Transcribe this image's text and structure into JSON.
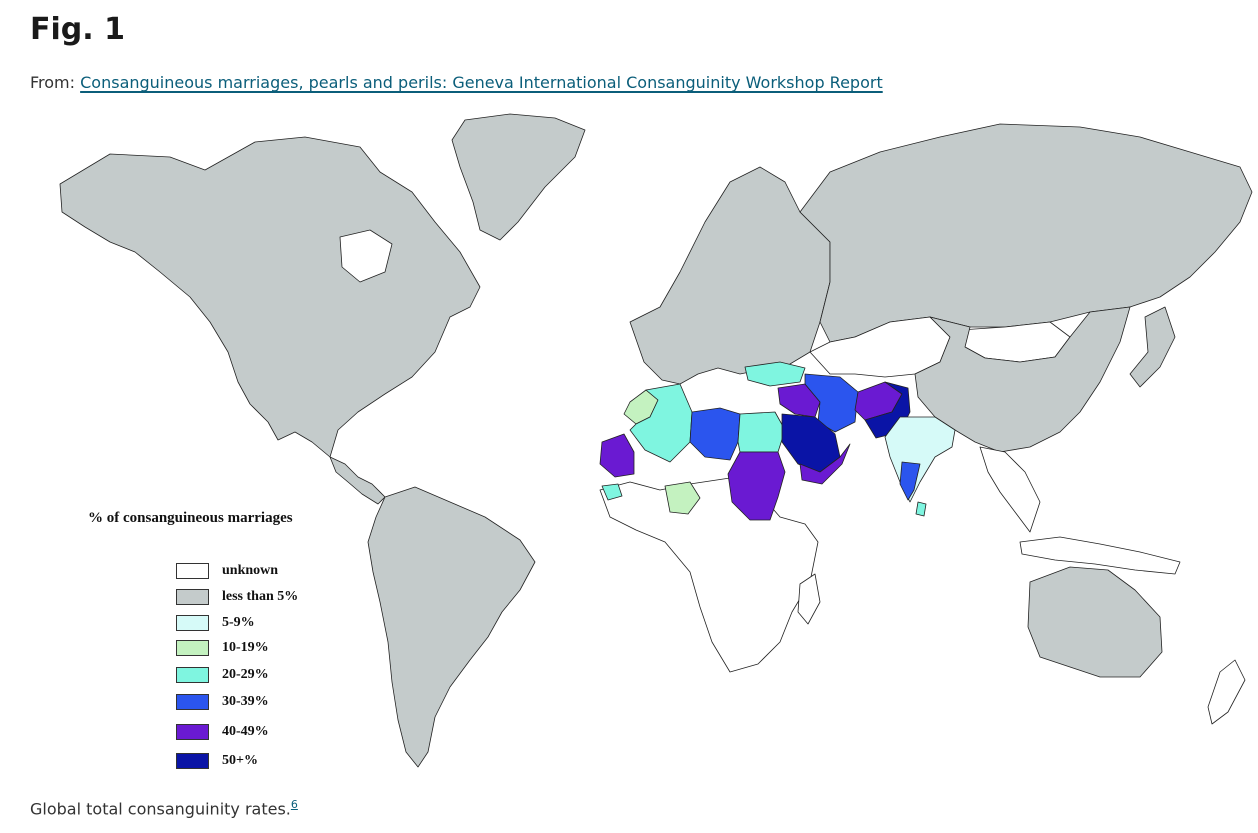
{
  "figure": {
    "title": "Fig. 1",
    "from_prefix": "From: ",
    "from_link_text": "Consanguineous marriages, pearls and perils: Geneva International Consanguinity Workshop Report",
    "caption_text": "Global total consanguinity rates.",
    "caption_ref": "6"
  },
  "legend": {
    "title": "% of consanguineous marriages",
    "items": [
      {
        "label": "unknown",
        "color": "#ffffff"
      },
      {
        "label": "less than 5%",
        "color": "#c4cbcb"
      },
      {
        "label": "5-9%",
        "color": "#d6faf8"
      },
      {
        "label": "10-19%",
        "color": "#c4f2c0"
      },
      {
        "label": "20-29%",
        "color": "#7ff5e0"
      },
      {
        "label": "30-39%",
        "color": "#2b55ee"
      },
      {
        "label": "40-49%",
        "color": "#6a1ad2"
      },
      {
        "label": "50+%",
        "color": "#0a14a6"
      }
    ]
  },
  "map_data": {
    "regions": [
      {
        "name": "North America",
        "category": "less than 5%"
      },
      {
        "name": "Greenland",
        "category": "less than 5%"
      },
      {
        "name": "South America",
        "category": "less than 5%"
      },
      {
        "name": "Europe",
        "category": "less than 5%"
      },
      {
        "name": "Russia",
        "category": "less than 5%"
      },
      {
        "name": "China",
        "category": "less than 5%"
      },
      {
        "name": "Australia",
        "category": "less than 5%"
      },
      {
        "name": "Central Asia",
        "category": "unknown"
      },
      {
        "name": "Mongolia",
        "category": "unknown"
      },
      {
        "name": "Sub-Saharan Africa",
        "category": "unknown"
      },
      {
        "name": "Morocco",
        "category": "10-19%"
      },
      {
        "name": "Algeria",
        "category": "20-29%"
      },
      {
        "name": "Libya",
        "category": "30-39%"
      },
      {
        "name": "Egypt",
        "category": "20-29%"
      },
      {
        "name": "Sudan",
        "category": "40-49%"
      },
      {
        "name": "Mauritania",
        "category": "40-49%"
      },
      {
        "name": "Nigeria",
        "category": "10-19%"
      },
      {
        "name": "Senegal",
        "category": "20-29%"
      },
      {
        "name": "Turkey",
        "category": "20-29%"
      },
      {
        "name": "Iraq / Syria",
        "category": "40-49%"
      },
      {
        "name": "Iran",
        "category": "30-39%"
      },
      {
        "name": "Saudi Arabia",
        "category": "50+%"
      },
      {
        "name": "Yemen / Oman",
        "category": "40-49%"
      },
      {
        "name": "Afghanistan",
        "category": "40-49%"
      },
      {
        "name": "Pakistan",
        "category": "50+%"
      },
      {
        "name": "India",
        "category": "5-9%"
      },
      {
        "name": "South India",
        "category": "30-39%"
      },
      {
        "name": "Sri Lanka",
        "category": "20-29%"
      },
      {
        "name": "Japan",
        "category": "less than 5%"
      }
    ]
  }
}
